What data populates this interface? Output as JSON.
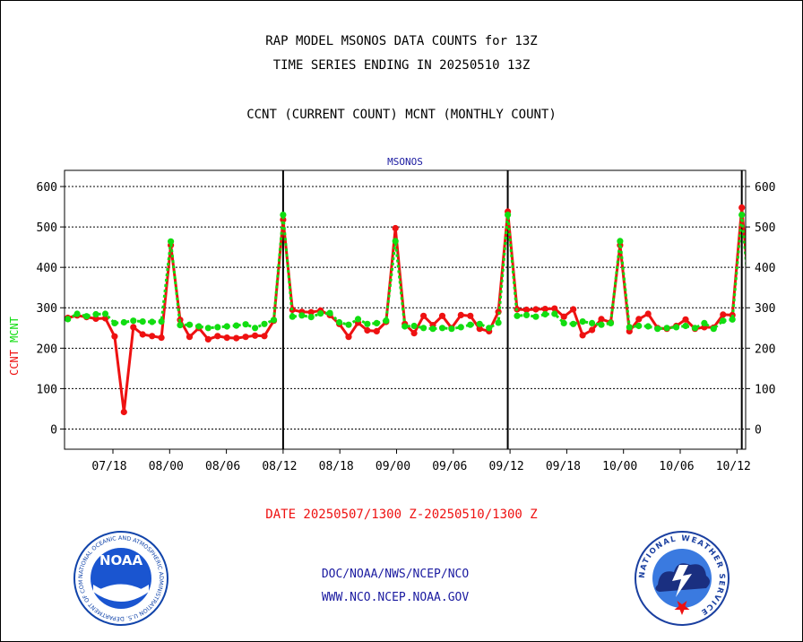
{
  "header": {
    "title": "RAP MODEL MSONOS DATA COUNTS for 13Z",
    "subtitle": "TIME SERIES ENDING IN 20250510 13Z",
    "note": "CCNT (CURRENT COUNT) MCNT (MONTHLY COUNT)"
  },
  "footer": {
    "date_range": "DATE 20250507/1300 Z-20250510/1300 Z",
    "org_path": "DOC/NOAA/NWS/NCEP/NCO",
    "website": "WWW.NCO.NCEP.NOAA.GOV"
  },
  "colors": {
    "ccnt": "#ee1111",
    "mcnt": "#11dd11",
    "credit": "#1a1aa0",
    "noaa_blue": "#1144aa",
    "nws_blue": "#2a5fd0"
  },
  "logos": {
    "noaa_text": "NOAA",
    "noaa_ring": "NATIONAL OCEANIC AND ATMOSPHERIC ADMINISTRATION  U.S. DEPARTMENT OF COMMERCE",
    "nws_ring": "NATIONAL WEATHER SERVICE"
  },
  "chart_data": {
    "type": "line",
    "title": "MSONOS",
    "ylabel_left": [
      "CCNT",
      "MCNT"
    ],
    "ylim": [
      -50,
      640
    ],
    "yticks": [
      0,
      100,
      200,
      300,
      400,
      500,
      600
    ],
    "xticks": [
      "07/18",
      "08/00",
      "08/06",
      "08/12",
      "08/18",
      "09/00",
      "09/06",
      "09/12",
      "09/18",
      "10/00",
      "10/06",
      "10/12"
    ],
    "day_dividers": [
      "08/12",
      "09/12",
      "10/12"
    ],
    "grid": true,
    "series": [
      {
        "name": "CCNT",
        "color": "red",
        "values": [
          275,
          281,
          277,
          273,
          274,
          229,
          42,
          252,
          234,
          230,
          226,
          455,
          270,
          228,
          250,
          222,
          230,
          226,
          225,
          228,
          231,
          230,
          268,
          518,
          295,
          290,
          289,
          293,
          282,
          260,
          228,
          263,
          244,
          242,
          265,
          497,
          260,
          237,
          280,
          257,
          280,
          250,
          282,
          280,
          248,
          242,
          290,
          538,
          296,
          295,
          296,
          297,
          298,
          278,
          296,
          232,
          245,
          272,
          264,
          455,
          242,
          272,
          285,
          250,
          248,
          255,
          271,
          248,
          252,
          251,
          283,
          282,
          548,
          295
        ]
      },
      {
        "name": "MCNT",
        "color": "green",
        "values": [
          272,
          285,
          279,
          284,
          285,
          262,
          264,
          268,
          266,
          265,
          266,
          464,
          257,
          258,
          254,
          250,
          252,
          254,
          256,
          259,
          250,
          260,
          270,
          530,
          278,
          281,
          277,
          286,
          287,
          264,
          258,
          272,
          260,
          262,
          268,
          465,
          254,
          255,
          250,
          248,
          250,
          248,
          252,
          258,
          260,
          250,
          263,
          530,
          280,
          282,
          278,
          284,
          285,
          262,
          260,
          266,
          262,
          258,
          262,
          465,
          252,
          255,
          254,
          248,
          250,
          252,
          255,
          250,
          262,
          248,
          268,
          271,
          530,
          280
        ]
      }
    ]
  }
}
